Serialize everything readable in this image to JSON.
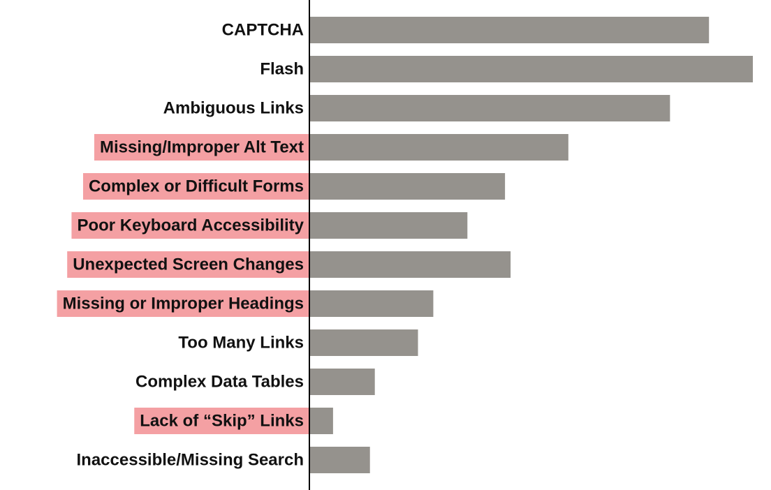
{
  "chart_data": {
    "type": "bar",
    "orientation": "horizontal",
    "categories": [
      "CAPTCHA",
      "Flash",
      "Ambiguous Links",
      "Missing/Improper Alt Text",
      "Complex or Difficult Forms",
      "Poor Keyboard Accessibility",
      "Unexpected Screen Changes",
      "Missing or Improper Headings",
      "Too Many Links",
      "Complex Data Tables",
      "Lack of “Skip” Links",
      "Inaccessible/Missing Search"
    ],
    "values": [
      574,
      637,
      518,
      372,
      281,
      227,
      289,
      178,
      156,
      94,
      34,
      87
    ],
    "highlighted": [
      false,
      false,
      false,
      true,
      true,
      true,
      true,
      true,
      false,
      false,
      true,
      false
    ],
    "xlim": [
      0,
      640
    ],
    "grid": false,
    "legend": "none",
    "colors": {
      "bar": "#95928d",
      "highlight": "#f4a0a3",
      "axis": "#000000",
      "text": "#111111"
    }
  }
}
